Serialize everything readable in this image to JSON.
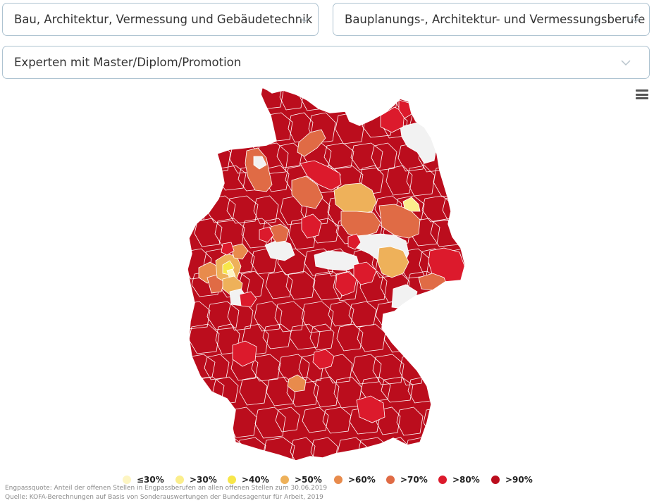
{
  "filters": {
    "field": "Bau, Architektur, Vermessung und Gebäudetechnik",
    "occupation": "Bauplanungs-, Architektur- und Vermessungsberufe",
    "level": "Experten mit Master/Diplom/Promotion"
  },
  "icons": {
    "dropdown": "chevron-down-icon",
    "menu": "hamburger-menu-icon"
  },
  "colors": {
    "le30": "#fdf5c2",
    "gt30": "#fbee8c",
    "gt40": "#f7e64a",
    "gt50": "#eeb15a",
    "gt60": "#e88b4c",
    "gt70": "#e06b45",
    "gt80": "#dc1a2c",
    "gt90": "#bb0d1d",
    "nodata": "#f2f2f2"
  },
  "legend": [
    {
      "label": "≤30%",
      "color": "#fdf5c2"
    },
    {
      "label": ">30%",
      "color": "#fbee8c"
    },
    {
      "label": ">40%",
      "color": "#f7e64a"
    },
    {
      "label": ">50%",
      "color": "#eeb15a"
    },
    {
      "label": ">60%",
      "color": "#e88b4c"
    },
    {
      "label": ">70%",
      "color": "#e06b45"
    },
    {
      "label": ">80%",
      "color": "#dc1a2c"
    },
    {
      "label": ">90%",
      "color": "#bb0d1d"
    }
  ],
  "notes": {
    "definition": "Engpassquote: Anteil der offenen Stellen in Engpassberufen an allen offenen Stellen zum 30.06.2019",
    "source": "Quelle: KOFA-Berechnungen auf Basis von Sonderauswertungen der Bundesagentur für Arbeit, 2019"
  }
}
